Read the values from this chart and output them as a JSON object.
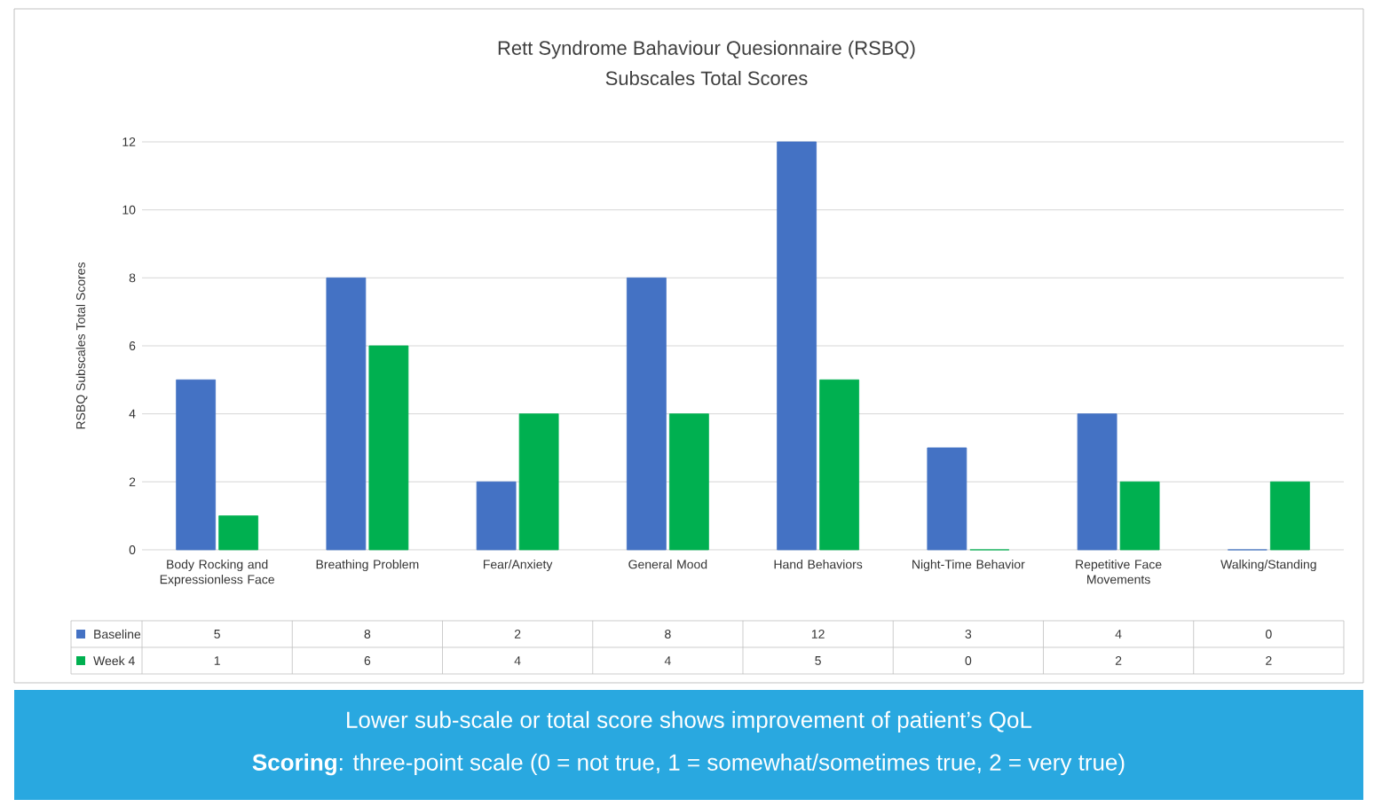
{
  "chart_data": {
    "type": "bar",
    "title": "Rett Syndrome Bahaviour Quesionnaire (RSBQ)",
    "subtitle": "Subscales Total Scores",
    "ylabel": "RSBQ Subscales Total Scores",
    "categories": [
      "Body Rocking and Expressionless Face",
      "Breathing Problem",
      "Fear/Anxiety",
      "General Mood",
      "Hand Behaviors",
      "Night-Time Behavior",
      "Repetitive Face Movements",
      "Walking/Standing"
    ],
    "series": [
      {
        "name": "Baseline",
        "color": "#4472c4",
        "values": [
          5,
          8,
          2,
          8,
          12,
          3,
          4,
          0
        ]
      },
      {
        "name": "Week 4",
        "color": "#00b050",
        "values": [
          1,
          6,
          4,
          4,
          5,
          0,
          2,
          2
        ]
      }
    ],
    "ylim": [
      0,
      12
    ],
    "yticks": [
      0,
      2,
      4,
      6,
      8,
      10,
      12
    ],
    "grid": "y",
    "legend": "bottom",
    "data_labels": true,
    "annotations": [
      "Lower sub-scale or total score shows improvement of patient’s QoL",
      "**Scoring**: three-point scale (0 = not true, 1 = somewhat/sometimes true,  2 = very true)"
    ]
  }
}
